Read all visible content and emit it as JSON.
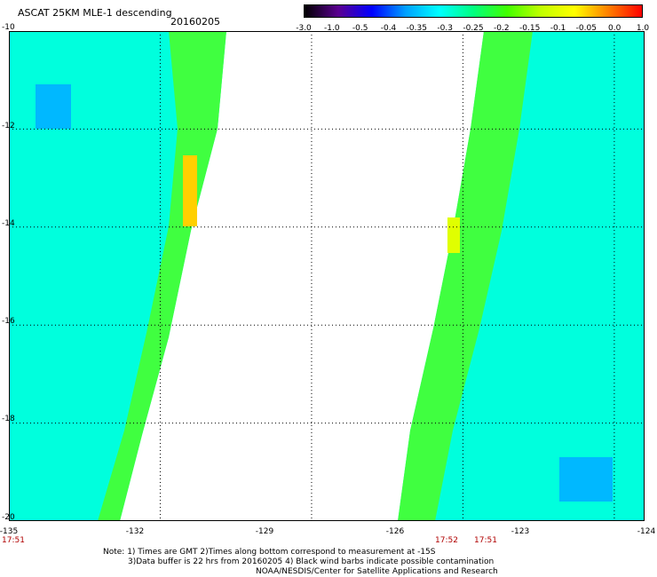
{
  "title": "ASCAT 25KM MLE-1 descending",
  "date": "20160205",
  "colorbar": {
    "labels": [
      "-3.0",
      "-1.0",
      "-0.5",
      "-0.4",
      "-0.35",
      "-0.3",
      "-0.25",
      "-0.2",
      "-0.15",
      "-0.1",
      "-0.05",
      "0.0",
      "1.0"
    ],
    "colors": [
      "#000000",
      "#5a0090",
      "#0000ff",
      "#00a0ff",
      "#00ffff",
      "#00ff80",
      "#40ff00",
      "#c0ff00",
      "#ffff00",
      "#ff8000",
      "#ff0000"
    ]
  },
  "map": {
    "lat_ticks": [
      "-10",
      "-12",
      "-14",
      "-16",
      "-18",
      "-20"
    ],
    "lon_ticks": [
      "-135",
      "-132",
      "-129",
      "-126",
      "-123",
      "-124"
    ],
    "lat_range": [
      -20,
      -10
    ],
    "lon_range": [
      -135,
      -122.4
    ],
    "time_labels": [
      "17:51",
      "17:52",
      "17:51"
    ]
  },
  "note": {
    "line1": "Note: 1) Times are GMT 2)Times along bottom correspond to measurement at -15S",
    "line2": "3)Data buffer is 22 hrs from 20160205 4) Black wind barbs indicate possible contamination",
    "line3": "NOAA/NESDIS/Center for Satellite Applications and Research"
  }
}
